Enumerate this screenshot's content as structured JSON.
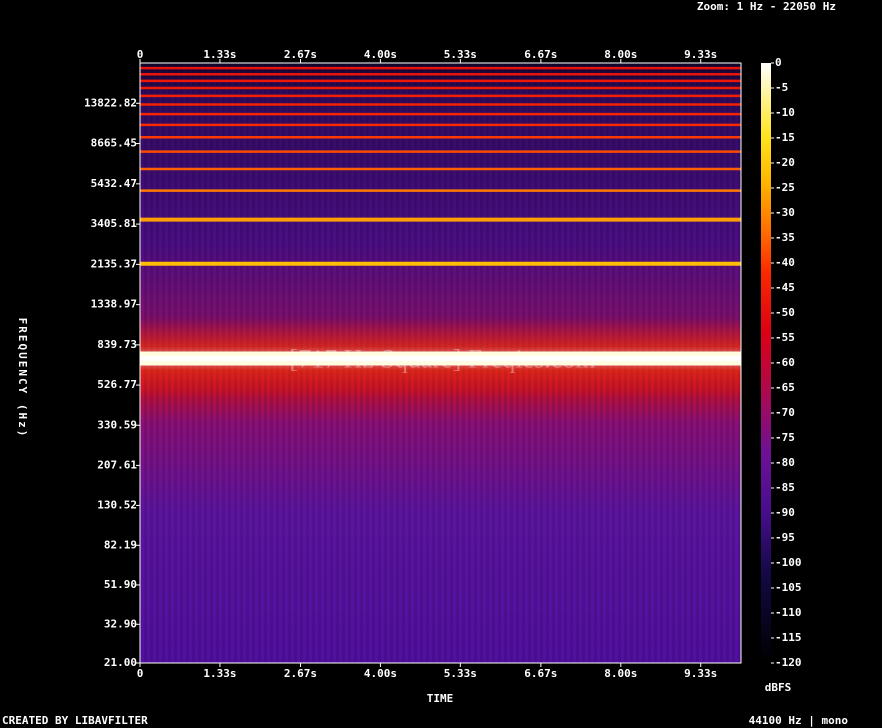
{
  "chart_data": {
    "type": "spectrogram",
    "zoom_label": "Zoom: 1 Hz - 22050 Hz",
    "watermark": "[717 Hz Square] Freqies.com",
    "xlabel": "TIME",
    "ylabel": "FREQUENCY (Hz)",
    "colorbar_label": "dBFS",
    "footer_left": "CREATED BY LIBAVFILTER",
    "footer_right": "44100 Hz | mono",
    "xlim": [
      0,
      10
    ],
    "xticks": [
      0,
      {
        "value": 1.33,
        "label": "1.33s"
      },
      {
        "value": 2.67,
        "label": "2.67s"
      },
      {
        "value": 4,
        "label": "4.00s"
      },
      {
        "value": 5.33,
        "label": "5.33s"
      },
      {
        "value": 6.67,
        "label": "6.67s"
      },
      {
        "value": 8,
        "label": "8.00s"
      },
      {
        "value": 9.33,
        "label": "9.33s"
      }
    ],
    "ylim": [
      21,
      22050
    ],
    "ylog": true,
    "yticks": [
      {
        "value": 21,
        "label": "21.00"
      },
      {
        "value": 32.9,
        "label": "32.90"
      },
      {
        "value": 51.9,
        "label": "51.90"
      },
      82.19,
      130.52,
      207.61,
      330.59,
      526.77,
      839.73,
      1338.97,
      2135.37,
      3405.81,
      5432.47,
      8665.45,
      13822.82
    ],
    "clim": [
      -120,
      0
    ],
    "cticks": [
      0,
      -5,
      -10,
      -15,
      -20,
      -25,
      -30,
      -35,
      -40,
      -45,
      -50,
      -55,
      -60,
      -65,
      -70,
      -75,
      -80,
      -85,
      -90,
      -95,
      -100,
      -105,
      -110,
      -115,
      -120
    ],
    "harmonics": {
      "frequency": [
        717,
        2151,
        3585,
        5019,
        6453,
        7887,
        9321,
        10755,
        12189,
        13623,
        15057,
        16491,
        17925,
        19359,
        20793
      ],
      "level": [
        -2,
        -22,
        -27,
        -32,
        -35,
        -38,
        -40,
        -42,
        -43,
        -44,
        -45,
        -46,
        -47,
        -48,
        -49
      ]
    }
  }
}
